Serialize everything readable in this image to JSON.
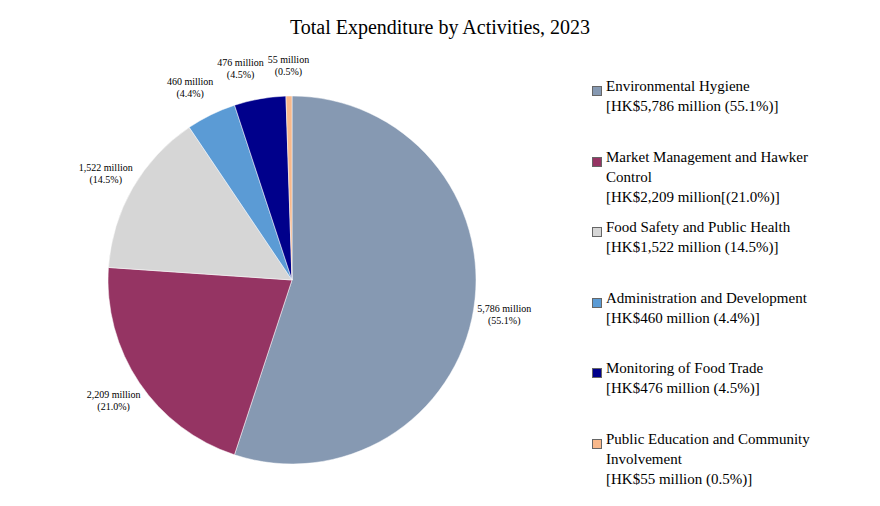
{
  "chart_data": {
    "type": "pie",
    "title": "Total Expenditure by Activities, 2023",
    "categories": [
      "Environmental Hygiene",
      "Market Management and Hawker Control",
      "Food Safety and Public Health",
      "Administration and Development",
      "Monitoring of Food Trade",
      "Public Education and Community Involvement"
    ],
    "values": [
      5786,
      2209,
      1522,
      460,
      476,
      55
    ],
    "value_labels": [
      "5,786 million",
      "2,209 million",
      "1,522 million",
      "460 million",
      "476 million",
      "55 million"
    ],
    "percentages": [
      55.1,
      21.0,
      14.5,
      4.4,
      4.5,
      0.5
    ],
    "percentage_labels": [
      "(55.1%)",
      "(21.0%)",
      "(14.5%)",
      "(4.4%)",
      "(4.5%)",
      "(0.5%)"
    ],
    "legend_labels": [
      "[HK$5,786 million (55.1%)]",
      "[HK$2,209 million[(21.0%)]",
      "[HK$1,522 million (14.5%)]",
      "[HK$460 million (4.4%)]",
      "[HK$476 million (4.5%)]",
      "[HK$55 million (0.5%)]"
    ],
    "colors": [
      "#8699b2",
      "#953463",
      "#d6d6d6",
      "#5b9bd5",
      "#00008b",
      "#f8b88b"
    ],
    "data_labels": true,
    "legend": "right"
  }
}
